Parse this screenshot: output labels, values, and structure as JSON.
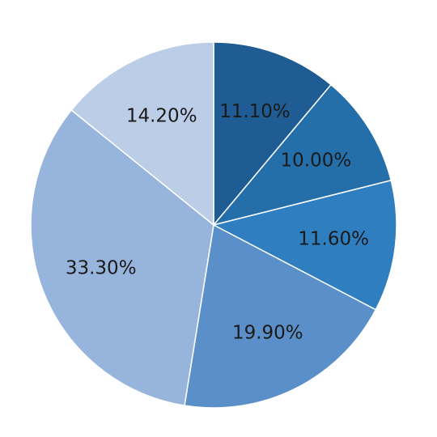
{
  "chart_data": {
    "type": "pie",
    "start_angle_deg": 0,
    "direction": "clockwise",
    "slices": [
      {
        "label": "11.10%",
        "value": 11.1,
        "color": "#1f5c94"
      },
      {
        "label": "10.00%",
        "value": 10.0,
        "color": "#246ea9"
      },
      {
        "label": "11.60%",
        "value": 11.6,
        "color": "#2f7fc0"
      },
      {
        "label": "19.90%",
        "value": 19.9,
        "color": "#5b8fc9"
      },
      {
        "label": "33.30%",
        "value": 33.3,
        "color": "#97b5dc"
      },
      {
        "label": "14.20%",
        "value": 14.2,
        "color": "#bccde7"
      }
    ]
  }
}
